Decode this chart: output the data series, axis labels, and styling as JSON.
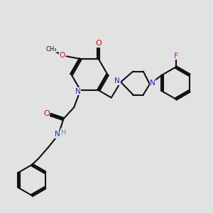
{
  "bg_color": "#e2e2e2",
  "bond_color": "#111111",
  "N_color": "#2020cc",
  "O_color": "#cc1111",
  "F_color": "#cc00cc",
  "H_color": "#33aaaa",
  "fs": 7.0,
  "lw": 1.5,
  "xlim": [
    0,
    10
  ],
  "ylim": [
    0,
    10
  ]
}
